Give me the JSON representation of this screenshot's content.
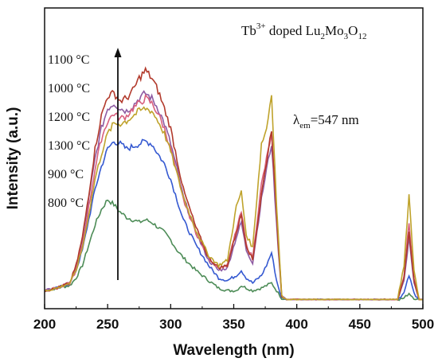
{
  "chart_data": {
    "type": "line",
    "title": "",
    "xlabel": "Wavelength (nm)",
    "ylabel": "Intensity (a.u.)",
    "xlim": [
      200,
      500
    ],
    "ylim": [
      0,
      1.0
    ],
    "x_ticks": [
      "200",
      "250",
      "300",
      "350",
      "400",
      "450",
      "500"
    ],
    "y_ticks_shown": false,
    "grid": false,
    "annotation_sample": {
      "prefix": "Tb",
      "sup": "3+",
      "mid": " doped Lu",
      "s1": "2",
      "m2": "Mo",
      "s2": "3",
      "m3": "O",
      "s3": "12"
    },
    "annotation_em": {
      "lambda": "λ",
      "sub": "em",
      "value": "=547 nm"
    },
    "arrow": "increasing intensity",
    "legend_order": [
      "1100 °C",
      "1000 °C",
      "1200 °C",
      "1300 °C",
      "900 °C",
      "800 °C"
    ],
    "series": [
      {
        "name": "800 °C",
        "color": "#4d8c57",
        "x": [
          200,
          210,
          220,
          225,
          230,
          235,
          240,
          245,
          250,
          255,
          260,
          265,
          270,
          275,
          280,
          285,
          290,
          295,
          300,
          305,
          310,
          320,
          330,
          338,
          345,
          352,
          356,
          360,
          365,
          372,
          376,
          380,
          384,
          388,
          392,
          400,
          420,
          440,
          460,
          480,
          485,
          489,
          493,
          497,
          500
        ],
        "y": [
          0.04,
          0.05,
          0.06,
          0.09,
          0.14,
          0.22,
          0.3,
          0.36,
          0.4,
          0.38,
          0.35,
          0.33,
          0.32,
          0.31,
          0.32,
          0.31,
          0.29,
          0.27,
          0.24,
          0.2,
          0.17,
          0.12,
          0.08,
          0.05,
          0.04,
          0.04,
          0.06,
          0.05,
          0.04,
          0.05,
          0.06,
          0.07,
          0.04,
          0.01,
          0.005,
          0.005,
          0.005,
          0.005,
          0.005,
          0.005,
          0.01,
          0.03,
          0.01,
          0.005,
          0.005
        ]
      },
      {
        "name": "900 °C",
        "color": "#3559d1",
        "x": [
          200,
          210,
          220,
          225,
          230,
          235,
          240,
          245,
          250,
          255,
          260,
          265,
          270,
          275,
          280,
          285,
          290,
          295,
          300,
          305,
          310,
          320,
          330,
          338,
          345,
          352,
          356,
          360,
          365,
          372,
          376,
          380,
          384,
          388,
          392,
          400,
          420,
          440,
          460,
          480,
          485,
          489,
          493,
          497,
          500
        ],
        "y": [
          0.04,
          0.05,
          0.07,
          0.12,
          0.2,
          0.32,
          0.44,
          0.53,
          0.6,
          0.63,
          0.62,
          0.6,
          0.61,
          0.62,
          0.63,
          0.62,
          0.58,
          0.54,
          0.48,
          0.4,
          0.32,
          0.22,
          0.14,
          0.09,
          0.08,
          0.1,
          0.12,
          0.09,
          0.07,
          0.1,
          0.14,
          0.19,
          0.08,
          0.01,
          0.005,
          0.005,
          0.005,
          0.005,
          0.005,
          0.005,
          0.03,
          0.1,
          0.03,
          0.005,
          0.005
        ]
      },
      {
        "name": "1000 °C",
        "color": "#8e5ba3",
        "x": [
          200,
          210,
          220,
          225,
          230,
          235,
          240,
          245,
          250,
          255,
          260,
          265,
          270,
          275,
          280,
          285,
          290,
          295,
          300,
          305,
          310,
          320,
          330,
          338,
          345,
          352,
          356,
          360,
          365,
          372,
          376,
          380,
          384,
          388,
          392,
          400,
          420,
          440,
          460,
          480,
          485,
          489,
          493,
          497,
          500
        ],
        "y": [
          0.04,
          0.05,
          0.07,
          0.13,
          0.24,
          0.4,
          0.56,
          0.68,
          0.76,
          0.78,
          0.76,
          0.75,
          0.77,
          0.8,
          0.82,
          0.8,
          0.76,
          0.7,
          0.62,
          0.52,
          0.41,
          0.27,
          0.16,
          0.12,
          0.13,
          0.25,
          0.31,
          0.2,
          0.15,
          0.4,
          0.52,
          0.62,
          0.3,
          0.02,
          0.005,
          0.005,
          0.005,
          0.005,
          0.005,
          0.005,
          0.08,
          0.25,
          0.07,
          0.005,
          0.005
        ]
      },
      {
        "name": "1100 °C",
        "color": "#b23a2c",
        "x": [
          200,
          210,
          220,
          225,
          230,
          235,
          240,
          245,
          250,
          255,
          260,
          265,
          270,
          275,
          280,
          285,
          290,
          295,
          300,
          305,
          310,
          320,
          330,
          338,
          345,
          352,
          356,
          360,
          365,
          372,
          376,
          380,
          384,
          388,
          392,
          400,
          420,
          440,
          460,
          480,
          485,
          489,
          493,
          497,
          500
        ],
        "y": [
          0.04,
          0.05,
          0.07,
          0.14,
          0.25,
          0.42,
          0.6,
          0.73,
          0.81,
          0.82,
          0.79,
          0.8,
          0.83,
          0.88,
          0.91,
          0.88,
          0.83,
          0.76,
          0.68,
          0.56,
          0.44,
          0.29,
          0.17,
          0.13,
          0.14,
          0.27,
          0.34,
          0.22,
          0.16,
          0.42,
          0.55,
          0.68,
          0.33,
          0.02,
          0.005,
          0.005,
          0.005,
          0.005,
          0.005,
          0.005,
          0.09,
          0.28,
          0.08,
          0.005,
          0.005
        ]
      },
      {
        "name": "1200 °C",
        "color": "#d8607e",
        "x": [
          200,
          210,
          220,
          225,
          230,
          235,
          240,
          245,
          250,
          255,
          260,
          265,
          270,
          275,
          280,
          285,
          290,
          295,
          300,
          305,
          310,
          320,
          330,
          338,
          345,
          352,
          356,
          360,
          365,
          372,
          376,
          380,
          384,
          388,
          392,
          400,
          420,
          440,
          460,
          480,
          485,
          489,
          493,
          497,
          500
        ],
        "y": [
          0.04,
          0.05,
          0.07,
          0.12,
          0.22,
          0.37,
          0.52,
          0.64,
          0.71,
          0.74,
          0.72,
          0.73,
          0.76,
          0.78,
          0.8,
          0.78,
          0.74,
          0.68,
          0.6,
          0.5,
          0.4,
          0.27,
          0.17,
          0.13,
          0.14,
          0.28,
          0.35,
          0.22,
          0.17,
          0.46,
          0.56,
          0.66,
          0.34,
          0.02,
          0.005,
          0.005,
          0.005,
          0.005,
          0.005,
          0.005,
          0.1,
          0.31,
          0.09,
          0.005,
          0.005
        ]
      },
      {
        "name": "1300 °C",
        "color": "#bfa32c",
        "x": [
          200,
          210,
          220,
          225,
          230,
          235,
          240,
          245,
          250,
          255,
          260,
          265,
          270,
          275,
          280,
          285,
          290,
          295,
          300,
          305,
          310,
          320,
          330,
          338,
          345,
          352,
          356,
          360,
          365,
          372,
          376,
          380,
          384,
          388,
          392,
          400,
          420,
          440,
          460,
          480,
          485,
          489,
          493,
          497,
          500
        ],
        "y": [
          0.04,
          0.05,
          0.07,
          0.12,
          0.21,
          0.34,
          0.48,
          0.58,
          0.66,
          0.7,
          0.7,
          0.71,
          0.73,
          0.75,
          0.76,
          0.75,
          0.71,
          0.66,
          0.59,
          0.5,
          0.41,
          0.28,
          0.18,
          0.14,
          0.16,
          0.37,
          0.43,
          0.26,
          0.21,
          0.62,
          0.68,
          0.82,
          0.38,
          0.02,
          0.005,
          0.005,
          0.005,
          0.005,
          0.005,
          0.005,
          0.14,
          0.42,
          0.12,
          0.005,
          0.005
        ]
      }
    ]
  }
}
